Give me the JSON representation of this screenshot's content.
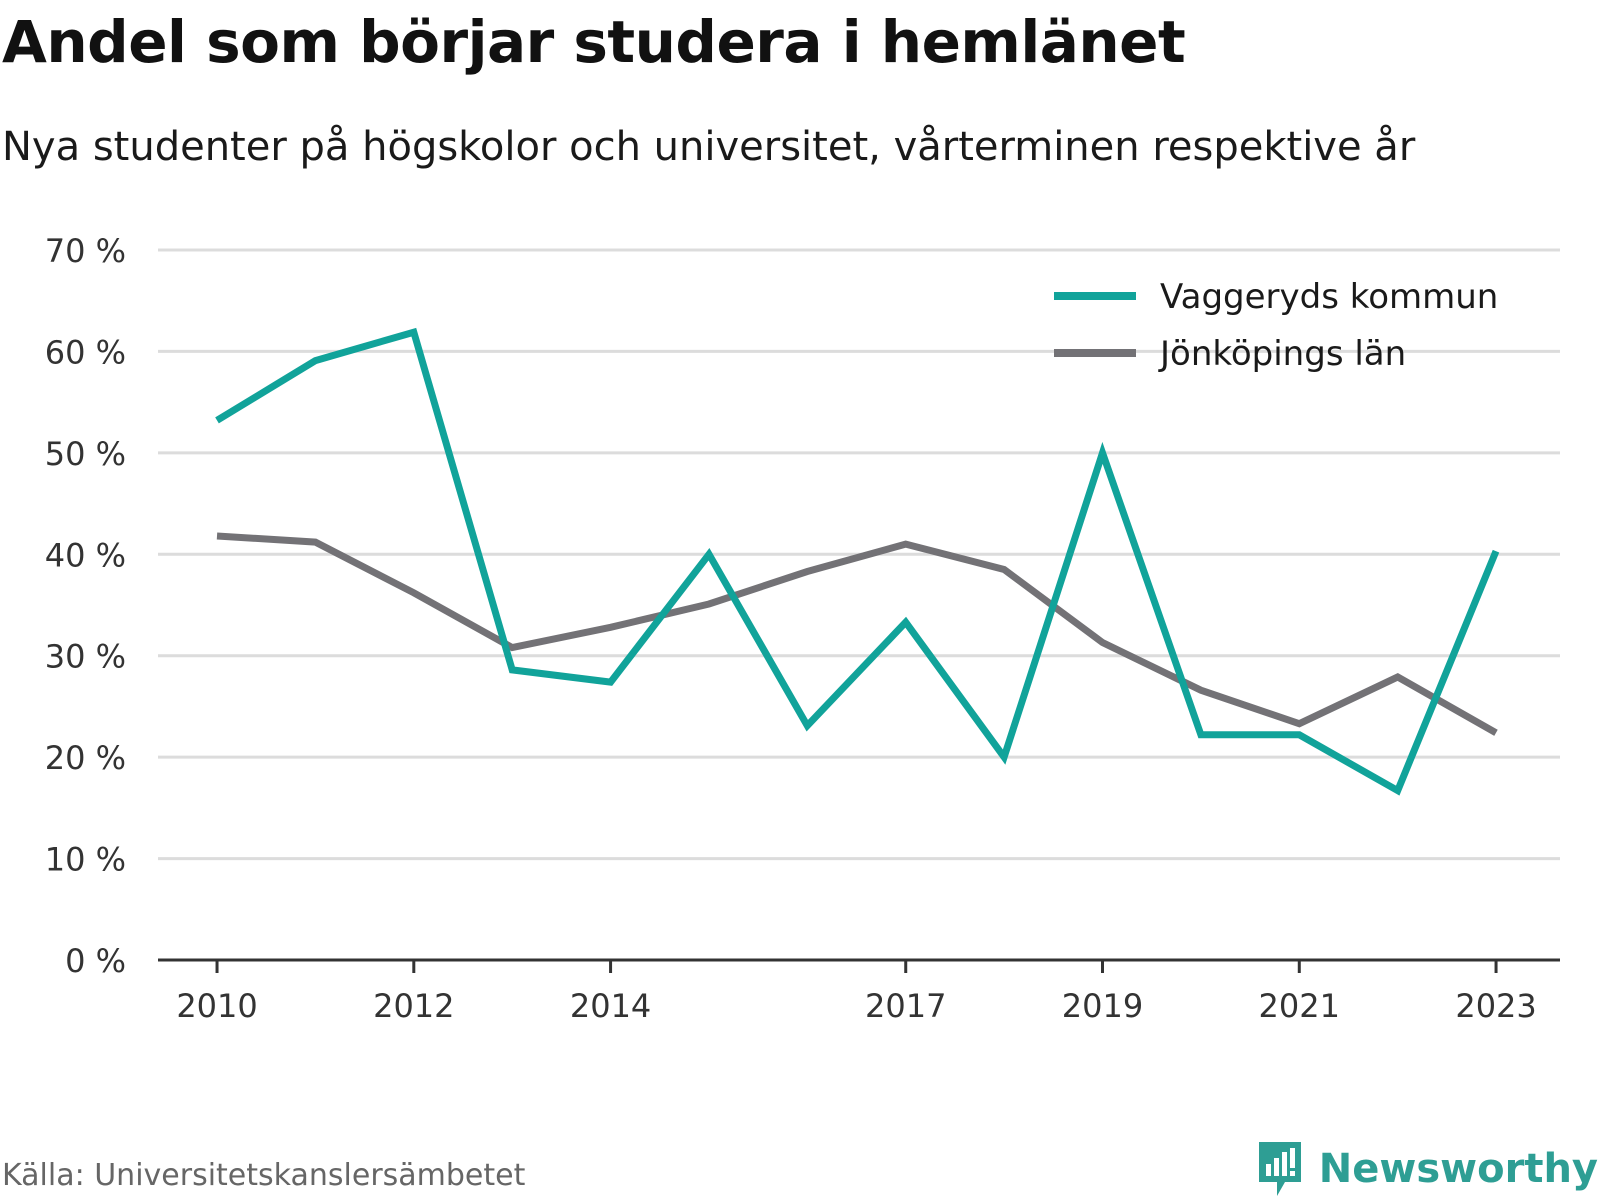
{
  "title": "Andel som börjar studera i hemlänet",
  "subtitle": "Nya studenter på högskolor och universitet, vårterminen respektive år",
  "source": "Källa: Universitetskanslersämbetet",
  "brand": {
    "name": "Newsworthy",
    "icon": "bar-chart-speech-icon",
    "color": "#2e9e94"
  },
  "chart_data": {
    "type": "line",
    "x": [
      2010,
      2011,
      2012,
      2013,
      2014,
      2015,
      2016,
      2017,
      2018,
      2019,
      2020,
      2021,
      2022,
      2023
    ],
    "x_tick_labels": [
      "2010",
      "2012",
      "2014",
      "2017",
      "2019",
      "2021",
      "2023"
    ],
    "y_ticks": [
      0,
      10,
      20,
      30,
      40,
      50,
      60,
      70
    ],
    "y_tick_labels": [
      "0 %",
      "10 %",
      "20 %",
      "30 %",
      "40 %",
      "50 %",
      "60 %",
      "70 %"
    ],
    "ylim": [
      0,
      70
    ],
    "xlim": [
      2009.4,
      2023.65
    ],
    "grid": true,
    "legend_position": "top-right",
    "series": [
      {
        "name": "Vaggeryds kommun",
        "color": "#11a39a",
        "values": [
          53.2,
          59.1,
          61.9,
          28.6,
          27.4,
          40.0,
          23.1,
          33.3,
          20.0,
          50.0,
          22.2,
          22.2,
          16.7,
          40.3
        ]
      },
      {
        "name": "Jönköpings län",
        "color": "#737276",
        "values": [
          41.8,
          41.2,
          36.2,
          30.8,
          32.8,
          35.1,
          38.3,
          41.0,
          38.5,
          31.3,
          26.6,
          23.3,
          27.9,
          22.4
        ]
      }
    ]
  }
}
